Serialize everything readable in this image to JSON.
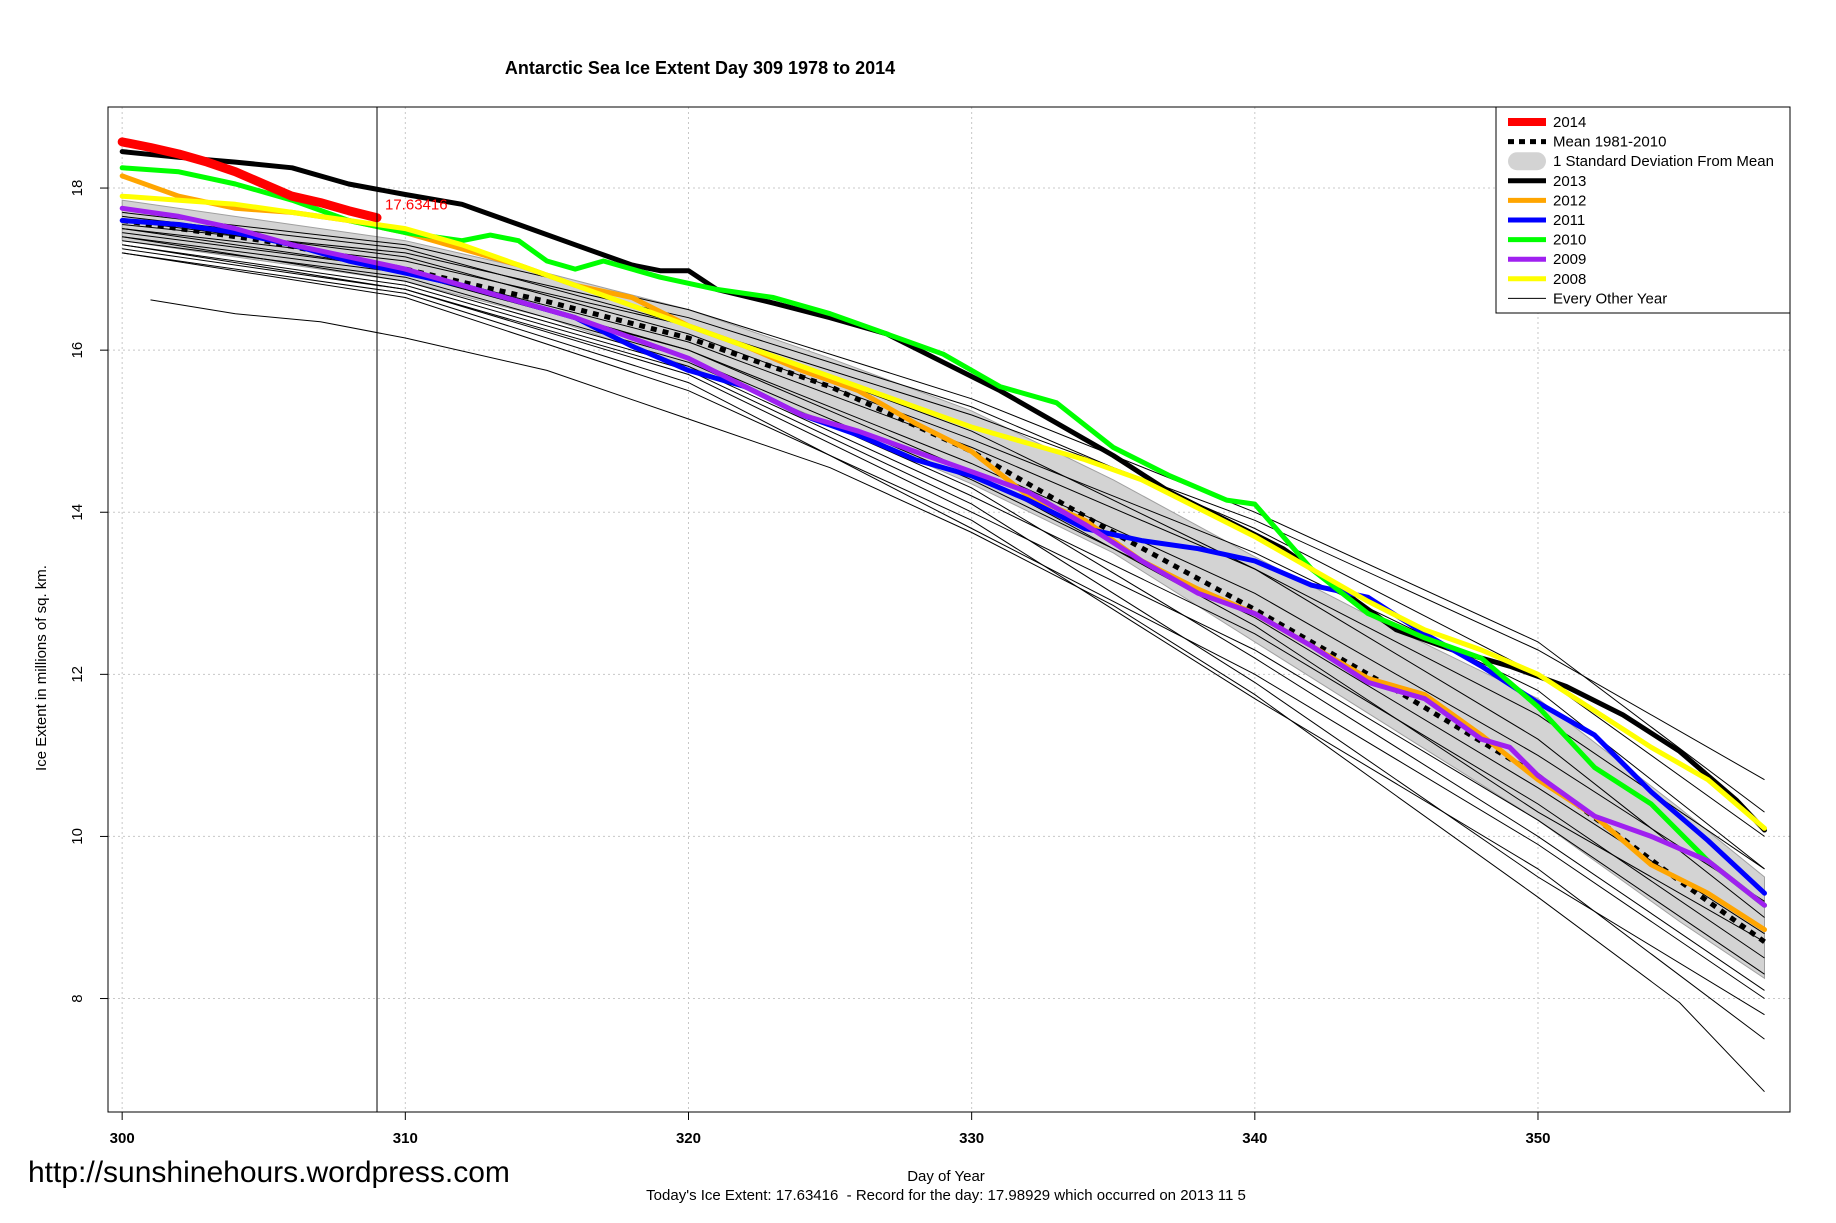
{
  "chart_data": {
    "type": "line",
    "title": "Antarctic Sea Ice Extent Day 309 1978 to 2014",
    "xlabel": "Day of Year",
    "ylabel": "Ice Extent in millions of sq. km.",
    "footer": "Today's Ice Extent: 17.63416  - Record for the day: 17.98929 which occurred on 2013 11 5",
    "watermark": "http://sunshinehours.wordpress.com",
    "xlim": [
      299.5,
      358.9
    ],
    "ylim": [
      6.6,
      19.0
    ],
    "x_ticks": [
      300,
      310,
      320,
      330,
      340,
      350
    ],
    "y_ticks": [
      8,
      10,
      12,
      14,
      16,
      18
    ],
    "grid": true,
    "legend_position": "top-right",
    "current_day": 309,
    "current_value_label": "17.63416",
    "legend": [
      {
        "label": "2014",
        "kind": "line",
        "color": "#ff0000"
      },
      {
        "label": "Mean 1981-2010",
        "kind": "dash",
        "color": "#000000"
      },
      {
        "label": "1 Standard Deviation From Mean",
        "kind": "band",
        "color": "#d3d3d3"
      },
      {
        "label": "2013",
        "kind": "line",
        "color": "#000000"
      },
      {
        "label": "2012",
        "kind": "line",
        "color": "#ffa500"
      },
      {
        "label": "2011",
        "kind": "line",
        "color": "#0000ff"
      },
      {
        "label": "2010",
        "kind": "line",
        "color": "#00ff00"
      },
      {
        "label": "2009",
        "kind": "line",
        "color": "#a020f0"
      },
      {
        "label": "2008",
        "kind": "line",
        "color": "#ffff00"
      },
      {
        "label": "Every Other Year",
        "kind": "thin",
        "color": "#000000"
      }
    ],
    "std_band": {
      "x": [
        300,
        305,
        310,
        315,
        320,
        325,
        330,
        335,
        340,
        345,
        350,
        355,
        358
      ],
      "upper": [
        17.85,
        17.6,
        17.35,
        16.95,
        16.5,
        15.9,
        15.25,
        14.4,
        13.45,
        12.55,
        11.7,
        10.35,
        9.5
      ],
      "lower": [
        17.35,
        17.1,
        16.85,
        16.4,
        15.8,
        15.1,
        14.35,
        13.5,
        12.4,
        11.3,
        10.2,
        8.95,
        8.25
      ]
    },
    "mean": {
      "name": "Mean 1981-2010",
      "x": [
        300,
        305,
        310,
        315,
        320,
        325,
        330,
        335,
        340,
        345,
        350,
        355,
        358
      ],
      "y": [
        17.6,
        17.35,
        17.0,
        16.6,
        16.15,
        15.55,
        14.75,
        13.75,
        12.8,
        11.8,
        10.75,
        9.45,
        8.7
      ]
    },
    "series": [
      {
        "name": "2014",
        "color": "#ff0000",
        "x": [
          300,
          301,
          302,
          303,
          304,
          305,
          306,
          307,
          308,
          309
        ],
        "y": [
          18.57,
          18.5,
          18.42,
          18.32,
          18.2,
          18.05,
          17.9,
          17.82,
          17.72,
          17.63416
        ]
      },
      {
        "name": "2013",
        "color": "#000000",
        "x": [
          300,
          302,
          304,
          306,
          308,
          310,
          312,
          314,
          316,
          318,
          319,
          320,
          321,
          323,
          325,
          327,
          329,
          331,
          333,
          335,
          337,
          339,
          341,
          343,
          345,
          347,
          349,
          351,
          353,
          355,
          357,
          358
        ],
        "y": [
          18.45,
          18.38,
          18.32,
          18.25,
          18.05,
          17.92,
          17.8,
          17.55,
          17.3,
          17.05,
          16.98,
          16.98,
          16.75,
          16.58,
          16.4,
          16.2,
          15.85,
          15.5,
          15.1,
          14.7,
          14.25,
          13.9,
          13.55,
          13.05,
          12.55,
          12.3,
          12.1,
          11.85,
          11.5,
          11.05,
          10.45,
          10.08
        ]
      },
      {
        "name": "2012",
        "color": "#ffa500",
        "x": [
          300,
          302,
          304,
          306,
          308,
          310,
          312,
          314,
          316,
          318,
          320,
          322,
          324,
          326,
          328,
          330,
          332,
          334,
          336,
          338,
          340,
          342,
          344,
          346,
          348,
          350,
          352,
          354,
          356,
          358
        ],
        "y": [
          18.15,
          17.9,
          17.75,
          17.7,
          17.6,
          17.45,
          17.25,
          17.05,
          16.8,
          16.65,
          16.3,
          16.05,
          15.75,
          15.5,
          15.1,
          14.75,
          14.2,
          13.9,
          13.4,
          13.05,
          12.75,
          12.35,
          11.95,
          11.75,
          11.25,
          10.7,
          10.25,
          9.65,
          9.3,
          8.85
        ]
      },
      {
        "name": "2011",
        "color": "#0000ff",
        "x": [
          300,
          302,
          304,
          306,
          308,
          310,
          312,
          314,
          316,
          318,
          320,
          322,
          324,
          326,
          328,
          330,
          332,
          334,
          336,
          338,
          340,
          342,
          344,
          346,
          348,
          350,
          352,
          354,
          356,
          358
        ],
        "y": [
          17.6,
          17.55,
          17.45,
          17.3,
          17.1,
          16.95,
          16.8,
          16.6,
          16.4,
          16.05,
          15.75,
          15.55,
          15.2,
          14.95,
          14.65,
          14.45,
          14.15,
          13.8,
          13.65,
          13.55,
          13.4,
          13.1,
          12.95,
          12.5,
          12.1,
          11.65,
          11.25,
          10.55,
          9.95,
          9.3
        ]
      },
      {
        "name": "2010",
        "color": "#00ff00",
        "x": [
          300,
          302,
          304,
          306,
          308,
          310,
          311,
          312,
          313,
          314,
          315,
          316,
          317,
          319,
          321,
          323,
          325,
          327,
          329,
          331,
          333,
          335,
          337,
          339,
          340,
          342,
          344,
          346,
          348,
          350,
          352,
          354,
          356,
          358
        ],
        "y": [
          18.25,
          18.2,
          18.05,
          17.85,
          17.6,
          17.45,
          17.4,
          17.35,
          17.42,
          17.35,
          17.1,
          17.0,
          17.1,
          16.9,
          16.75,
          16.65,
          16.45,
          16.2,
          15.95,
          15.55,
          15.35,
          14.8,
          14.45,
          14.15,
          14.1,
          13.3,
          12.75,
          12.45,
          12.2,
          11.6,
          10.85,
          10.4,
          9.7,
          9.15
        ]
      },
      {
        "name": "2009",
        "color": "#a020f0",
        "x": [
          300,
          302,
          304,
          306,
          308,
          310,
          312,
          314,
          316,
          318,
          320,
          322,
          324,
          326,
          328,
          330,
          332,
          334,
          336,
          338,
          340,
          342,
          344,
          346,
          348,
          349,
          350,
          352,
          354,
          356,
          358
        ],
        "y": [
          17.75,
          17.65,
          17.5,
          17.3,
          17.15,
          17.0,
          16.8,
          16.6,
          16.4,
          16.15,
          15.9,
          15.55,
          15.2,
          15.0,
          14.75,
          14.5,
          14.25,
          13.85,
          13.4,
          13.0,
          12.75,
          12.35,
          11.9,
          11.7,
          11.2,
          11.1,
          10.75,
          10.25,
          10.0,
          9.7,
          9.15
        ]
      },
      {
        "name": "2008",
        "color": "#ffff00",
        "x": [
          300,
          302,
          304,
          306,
          308,
          310,
          312,
          314,
          316,
          318,
          320,
          322,
          324,
          326,
          328,
          330,
          332,
          334,
          336,
          338,
          340,
          342,
          344,
          346,
          348,
          350,
          352,
          354,
          356,
          358
        ],
        "y": [
          17.9,
          17.85,
          17.8,
          17.7,
          17.6,
          17.5,
          17.3,
          17.05,
          16.8,
          16.55,
          16.3,
          16.05,
          15.8,
          15.55,
          15.3,
          15.05,
          14.85,
          14.65,
          14.4,
          14.05,
          13.7,
          13.3,
          12.9,
          12.55,
          12.3,
          12.0,
          11.55,
          11.1,
          10.7,
          10.1
        ]
      }
    ],
    "other_years": [
      {
        "x": [
          300,
          310,
          320,
          330,
          340,
          350,
          358
        ],
        "y": [
          17.5,
          17.1,
          16.3,
          15.2,
          13.9,
          12.3,
          10.7
        ]
      },
      {
        "x": [
          300,
          310,
          320,
          330,
          340,
          350,
          358
        ],
        "y": [
          17.45,
          17.0,
          16.1,
          14.8,
          13.3,
          11.5,
          9.6
        ]
      },
      {
        "x": [
          300,
          310,
          320,
          330,
          340,
          350,
          358
        ],
        "y": [
          17.4,
          16.95,
          16.0,
          14.6,
          13.0,
          11.0,
          9.2
        ]
      },
      {
        "x": [
          300,
          310,
          320,
          330,
          340,
          350,
          358
        ],
        "y": [
          17.35,
          16.9,
          15.9,
          14.4,
          12.7,
          10.6,
          8.8
        ]
      },
      {
        "x": [
          300,
          310,
          320,
          330,
          340,
          350,
          358
        ],
        "y": [
          17.3,
          16.8,
          15.8,
          14.2,
          12.5,
          10.4,
          8.5
        ]
      },
      {
        "x": [
          300,
          310,
          320,
          330,
          340,
          350,
          358
        ],
        "y": [
          17.25,
          16.75,
          15.7,
          14.0,
          12.3,
          10.2,
          8.3
        ]
      },
      {
        "x": [
          300,
          310,
          320,
          330,
          340,
          350,
          358
        ],
        "y": [
          17.2,
          16.7,
          15.6,
          13.8,
          12.0,
          9.9,
          8.0
        ]
      },
      {
        "x": [
          300,
          310,
          320,
          330,
          340,
          350,
          358
        ],
        "y": [
          17.55,
          17.2,
          16.4,
          15.3,
          13.8,
          12.0,
          10.0
        ]
      },
      {
        "x": [
          300,
          310,
          320,
          330,
          340,
          350,
          358
        ],
        "y": [
          17.6,
          17.15,
          16.2,
          14.9,
          13.5,
          11.8,
          9.6
        ]
      },
      {
        "x": [
          300,
          310,
          320,
          330,
          340,
          350,
          358
        ],
        "y": [
          17.7,
          17.3,
          16.5,
          15.4,
          14.0,
          12.4,
          10.3
        ]
      },
      {
        "x": [
          300,
          310,
          320,
          330,
          340,
          350,
          358
        ],
        "y": [
          17.65,
          17.25,
          16.3,
          15.0,
          13.3,
          11.2,
          9.0
        ]
      },
      {
        "x": [
          300,
          310,
          320,
          330,
          340,
          350,
          358
        ],
        "y": [
          17.4,
          16.85,
          15.85,
          14.3,
          12.2,
          10.0,
          8.1
        ]
      },
      {
        "x": [
          300,
          310,
          320,
          330,
          340,
          350,
          358
        ],
        "y": [
          17.3,
          16.75,
          15.75,
          14.1,
          11.9,
          9.5,
          7.8
        ]
      },
      {
        "x": [
          300,
          310,
          320,
          330,
          340,
          350,
          358
        ],
        "y": [
          17.5,
          17.0,
          16.0,
          14.5,
          12.6,
          10.3,
          8.7
        ]
      },
      {
        "x": [
          301,
          304,
          307,
          310,
          315,
          320,
          325,
          330,
          335,
          340,
          345,
          350,
          355,
          358
        ],
        "y": [
          16.62,
          16.45,
          16.35,
          16.15,
          15.75,
          15.15,
          14.55,
          13.75,
          12.85,
          11.75,
          10.5,
          9.25,
          7.95,
          6.85
        ]
      },
      {
        "x": [
          300,
          310,
          320,
          330,
          340,
          350,
          358
        ],
        "y": [
          17.2,
          16.65,
          15.5,
          13.9,
          11.7,
          9.6,
          7.5
        ]
      }
    ]
  }
}
